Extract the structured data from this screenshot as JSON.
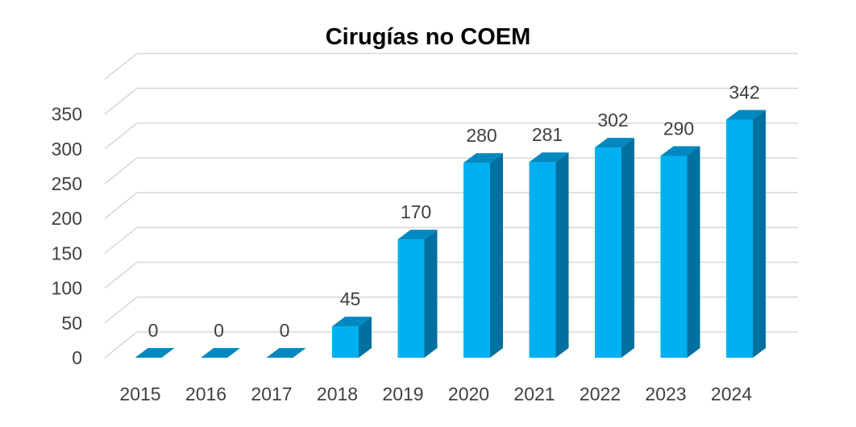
{
  "chart_data": {
    "type": "bar",
    "title": "Cirugías  no COEM",
    "categories": [
      "2015",
      "2016",
      "2017",
      "2018",
      "2019",
      "2020",
      "2021",
      "2022",
      "2023",
      "2024"
    ],
    "values": [
      0,
      0,
      0,
      45,
      170,
      280,
      281,
      302,
      290,
      342
    ],
    "data_labels": [
      "0",
      "0",
      "0",
      "45",
      "170",
      "280",
      "281",
      "302",
      "290",
      "342"
    ],
    "yticks": [
      "0",
      "50",
      "100",
      "150",
      "200",
      "250",
      "300",
      "350"
    ],
    "ytick_values": [
      0,
      50,
      100,
      150,
      200,
      250,
      300,
      350
    ],
    "ylim": [
      0,
      400
    ],
    "xlabel": "",
    "ylabel": "",
    "grid": true,
    "legend": "none",
    "style": "3d-column",
    "colors": {
      "bar_front": "#00B0F0",
      "bar_side": "#0070A0",
      "bar_top": "#0088C0",
      "grid": "#D9D9D9",
      "text": "#404040",
      "title": "#000000"
    }
  }
}
